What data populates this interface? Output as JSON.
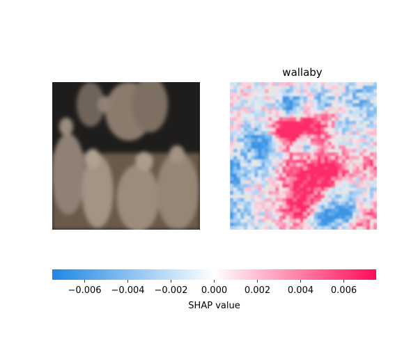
{
  "figure": {
    "panels": [
      {
        "kind": "input-image",
        "title": ""
      },
      {
        "kind": "shap-heatmap",
        "title": "wallaby"
      }
    ]
  },
  "chart_data": {
    "type": "heatmap",
    "title": "wallaby",
    "colorbar": {
      "label": "SHAP value",
      "range": [
        -0.0075,
        0.0075
      ],
      "ticks": [
        -0.006,
        -0.004,
        -0.002,
        0.0,
        0.002,
        0.004,
        0.006
      ],
      "tick_labels": [
        "−0.006",
        "−0.004",
        "−0.002",
        "0.000",
        "0.002",
        "0.004",
        "0.006"
      ],
      "negative_color": "#1E88E5",
      "mid_color": "#FFFFFF",
      "positive_color": "#FF0D57"
    },
    "image_palette": {
      "background": "#1f1d1c",
      "ground": "#6b5a4a",
      "fur_light": "#a39485",
      "fur_mid": "#8a7b6d",
      "fur_dark": "#5e5249"
    }
  }
}
